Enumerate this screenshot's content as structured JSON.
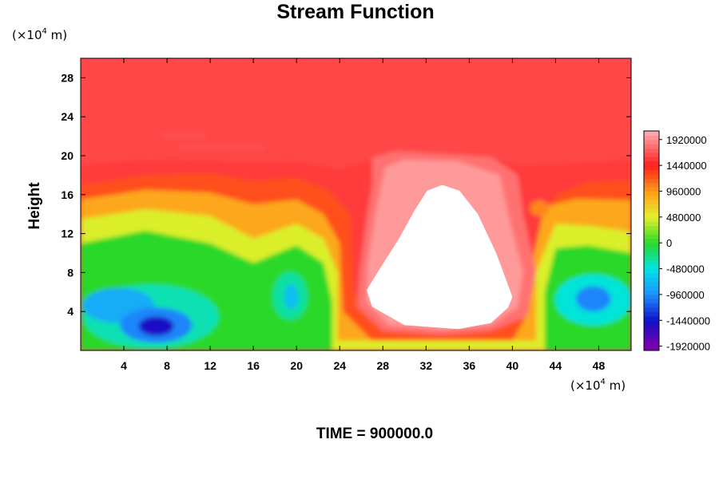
{
  "chart_data": {
    "type": "heatmap",
    "title": "Stream Function",
    "ylabel": "Height",
    "xlabel": "",
    "x_unit": {
      "base": "(×10",
      "exp": "4",
      "suffix": " m)"
    },
    "y_unit": {
      "base": "(×10",
      "exp": "4",
      "suffix": " m)"
    },
    "xlim": [
      0,
      51
    ],
    "ylim": [
      0,
      30
    ],
    "x_ticks": [
      4,
      8,
      12,
      16,
      20,
      24,
      28,
      32,
      36,
      40,
      44,
      48
    ],
    "y_ticks": [
      4,
      8,
      12,
      16,
      20,
      24,
      28
    ],
    "colorbar": {
      "range": [
        -2000000,
        2080000
      ],
      "tick_values": [
        1920000,
        1440000,
        960000,
        480000,
        0,
        -480000,
        -960000,
        -1440000,
        -1920000
      ],
      "tick_labels": [
        "1920000",
        "1440000",
        "960000",
        "480000",
        "0",
        "-480000",
        "-960000",
        "-1440000",
        "-1920000"
      ]
    },
    "undefined_region": {
      "color": "#ffffff",
      "center_x": 33.5,
      "top_y": 17,
      "bottom_y": 2.2,
      "left_x": 26.5,
      "right_x": 40
    },
    "features": [
      {
        "kind": "upper-plateau",
        "value": 1600000
      },
      {
        "kind": "low",
        "x": 7,
        "y": 2.5,
        "value": -1500000
      },
      {
        "kind": "low",
        "x": 3,
        "y": 4.5,
        "value": -900000
      },
      {
        "kind": "low",
        "x": 47.5,
        "y": 5.2,
        "value": -1100000
      },
      {
        "kind": "low",
        "x": 19.5,
        "y": 5.5,
        "value": -650000
      },
      {
        "kind": "high",
        "x": 33.5,
        "y": 9,
        "value": 2100000
      }
    ]
  },
  "footer": {
    "time_label": "TIME = 900000.0"
  }
}
